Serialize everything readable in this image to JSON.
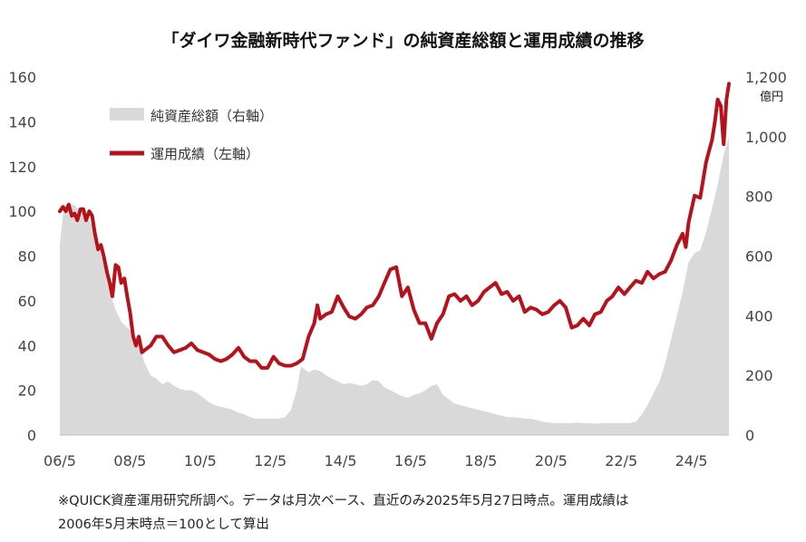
{
  "chart_data": {
    "type": "line",
    "title": "「ダイワ金融新時代ファンド」の純資産総額と運用成績の推移",
    "x_ticks": [
      "06/5",
      "08/5",
      "10/5",
      "12/5",
      "14/5",
      "16/5",
      "18/5",
      "20/5",
      "22/5",
      "24/5"
    ],
    "x_range": [
      2006.33,
      2025.4
    ],
    "y_left": {
      "ticks": [
        "0",
        "20",
        "40",
        "60",
        "80",
        "100",
        "120",
        "140",
        "160"
      ],
      "range": [
        0,
        160
      ]
    },
    "y_right": {
      "ticks": [
        "0",
        "200",
        "400",
        "600",
        "800",
        "1,000",
        "1,200"
      ],
      "range": [
        0,
        1200
      ],
      "unit": "億円"
    },
    "legend": {
      "placement": "top-left"
    },
    "series": [
      {
        "name": "純資産総額（右軸）",
        "type": "area",
        "axis": "right",
        "color": "#d9d9d9",
        "points": [
          [
            2006.33,
            640
          ],
          [
            2006.42,
            740
          ],
          [
            2006.58,
            780
          ],
          [
            2006.75,
            770
          ],
          [
            2006.92,
            750
          ],
          [
            2007.08,
            740
          ],
          [
            2007.25,
            700
          ],
          [
            2007.42,
            640
          ],
          [
            2007.58,
            570
          ],
          [
            2007.75,
            480
          ],
          [
            2007.92,
            420
          ],
          [
            2008.08,
            380
          ],
          [
            2008.25,
            360
          ],
          [
            2008.42,
            340
          ],
          [
            2008.58,
            300
          ],
          [
            2008.75,
            240
          ],
          [
            2008.92,
            200
          ],
          [
            2009.08,
            190
          ],
          [
            2009.25,
            170
          ],
          [
            2009.42,
            180
          ],
          [
            2009.58,
            165
          ],
          [
            2009.75,
            155
          ],
          [
            2009.92,
            150
          ],
          [
            2010.08,
            150
          ],
          [
            2010.25,
            140
          ],
          [
            2010.42,
            125
          ],
          [
            2010.58,
            110
          ],
          [
            2010.75,
            100
          ],
          [
            2010.92,
            95
          ],
          [
            2011.08,
            90
          ],
          [
            2011.25,
            85
          ],
          [
            2011.42,
            75
          ],
          [
            2011.58,
            70
          ],
          [
            2011.75,
            60
          ],
          [
            2011.92,
            55
          ],
          [
            2012.08,
            55
          ],
          [
            2012.25,
            55
          ],
          [
            2012.42,
            55
          ],
          [
            2012.58,
            55
          ],
          [
            2012.75,
            60
          ],
          [
            2012.92,
            85
          ],
          [
            2013.08,
            150
          ],
          [
            2013.2,
            230
          ],
          [
            2013.42,
            210
          ],
          [
            2013.58,
            220
          ],
          [
            2013.75,
            215
          ],
          [
            2013.92,
            200
          ],
          [
            2014.08,
            190
          ],
          [
            2014.25,
            180
          ],
          [
            2014.42,
            170
          ],
          [
            2014.58,
            175
          ],
          [
            2014.75,
            170
          ],
          [
            2014.92,
            165
          ],
          [
            2015.08,
            170
          ],
          [
            2015.25,
            185
          ],
          [
            2015.42,
            180
          ],
          [
            2015.58,
            160
          ],
          [
            2015.75,
            150
          ],
          [
            2015.92,
            140
          ],
          [
            2016.08,
            130
          ],
          [
            2016.25,
            125
          ],
          [
            2016.42,
            135
          ],
          [
            2016.58,
            140
          ],
          [
            2016.75,
            150
          ],
          [
            2016.92,
            165
          ],
          [
            2017.08,
            170
          ],
          [
            2017.25,
            135
          ],
          [
            2017.42,
            120
          ],
          [
            2017.58,
            105
          ],
          [
            2017.75,
            100
          ],
          [
            2017.92,
            95
          ],
          [
            2018.08,
            90
          ],
          [
            2018.25,
            85
          ],
          [
            2018.42,
            80
          ],
          [
            2018.58,
            75
          ],
          [
            2018.75,
            70
          ],
          [
            2018.92,
            65
          ],
          [
            2019.08,
            60
          ],
          [
            2019.25,
            60
          ],
          [
            2019.42,
            58
          ],
          [
            2019.58,
            55
          ],
          [
            2019.75,
            55
          ],
          [
            2019.92,
            50
          ],
          [
            2020.08,
            45
          ],
          [
            2020.25,
            42
          ],
          [
            2020.42,
            40
          ],
          [
            2020.58,
            40
          ],
          [
            2020.75,
            40
          ],
          [
            2020.92,
            40
          ],
          [
            2021.08,
            42
          ],
          [
            2021.25,
            40
          ],
          [
            2021.42,
            40
          ],
          [
            2021.58,
            38
          ],
          [
            2021.75,
            40
          ],
          [
            2021.92,
            40
          ],
          [
            2022.08,
            40
          ],
          [
            2022.25,
            40
          ],
          [
            2022.42,
            40
          ],
          [
            2022.58,
            40
          ],
          [
            2022.75,
            45
          ],
          [
            2022.92,
            70
          ],
          [
            2023.08,
            100
          ],
          [
            2023.25,
            140
          ],
          [
            2023.42,
            180
          ],
          [
            2023.58,
            240
          ],
          [
            2023.75,
            320
          ],
          [
            2023.92,
            400
          ],
          [
            2024.08,
            480
          ],
          [
            2024.25,
            580
          ],
          [
            2024.42,
            610
          ],
          [
            2024.58,
            620
          ],
          [
            2024.75,
            680
          ],
          [
            2024.92,
            760
          ],
          [
            2025.08,
            840
          ],
          [
            2025.25,
            940
          ],
          [
            2025.4,
            1000
          ]
        ]
      },
      {
        "name": "運用成績（左軸）",
        "type": "line",
        "axis": "left",
        "color": "#b5121b",
        "points": [
          [
            2006.33,
            100
          ],
          [
            2006.42,
            102
          ],
          [
            2006.5,
            100
          ],
          [
            2006.58,
            103
          ],
          [
            2006.67,
            98
          ],
          [
            2006.75,
            99
          ],
          [
            2006.83,
            96
          ],
          [
            2006.92,
            101
          ],
          [
            2007.0,
            101
          ],
          [
            2007.08,
            96
          ],
          [
            2007.17,
            100
          ],
          [
            2007.25,
            98
          ],
          [
            2007.33,
            90
          ],
          [
            2007.42,
            83
          ],
          [
            2007.5,
            85
          ],
          [
            2007.58,
            80
          ],
          [
            2007.67,
            73
          ],
          [
            2007.75,
            68
          ],
          [
            2007.83,
            62
          ],
          [
            2007.92,
            76
          ],
          [
            2008.0,
            75
          ],
          [
            2008.08,
            68
          ],
          [
            2008.17,
            70
          ],
          [
            2008.25,
            62
          ],
          [
            2008.33,
            55
          ],
          [
            2008.42,
            44
          ],
          [
            2008.5,
            40
          ],
          [
            2008.58,
            44
          ],
          [
            2008.67,
            37
          ],
          [
            2008.75,
            38
          ],
          [
            2008.92,
            40
          ],
          [
            2009.08,
            44
          ],
          [
            2009.25,
            44
          ],
          [
            2009.42,
            40
          ],
          [
            2009.58,
            37
          ],
          [
            2009.75,
            38
          ],
          [
            2009.92,
            39
          ],
          [
            2010.08,
            41
          ],
          [
            2010.25,
            38
          ],
          [
            2010.42,
            37
          ],
          [
            2010.58,
            36
          ],
          [
            2010.75,
            34
          ],
          [
            2010.92,
            33
          ],
          [
            2011.08,
            34
          ],
          [
            2011.25,
            36
          ],
          [
            2011.42,
            39
          ],
          [
            2011.58,
            35
          ],
          [
            2011.75,
            33
          ],
          [
            2011.92,
            33
          ],
          [
            2012.08,
            30
          ],
          [
            2012.25,
            30
          ],
          [
            2012.42,
            35
          ],
          [
            2012.58,
            32
          ],
          [
            2012.75,
            31
          ],
          [
            2012.92,
            31
          ],
          [
            2013.08,
            32
          ],
          [
            2013.25,
            34
          ],
          [
            2013.42,
            44
          ],
          [
            2013.58,
            50
          ],
          [
            2013.67,
            58
          ],
          [
            2013.75,
            52
          ],
          [
            2013.92,
            54
          ],
          [
            2014.08,
            55
          ],
          [
            2014.25,
            62
          ],
          [
            2014.42,
            57
          ],
          [
            2014.58,
            53
          ],
          [
            2014.75,
            52
          ],
          [
            2014.92,
            54
          ],
          [
            2015.08,
            57
          ],
          [
            2015.25,
            58
          ],
          [
            2015.42,
            62
          ],
          [
            2015.58,
            68
          ],
          [
            2015.75,
            74
          ],
          [
            2015.92,
            75
          ],
          [
            2016.08,
            62
          ],
          [
            2016.25,
            66
          ],
          [
            2016.42,
            56
          ],
          [
            2016.58,
            50
          ],
          [
            2016.75,
            50
          ],
          [
            2016.92,
            43
          ],
          [
            2017.08,
            50
          ],
          [
            2017.25,
            54
          ],
          [
            2017.42,
            62
          ],
          [
            2017.58,
            63
          ],
          [
            2017.75,
            60
          ],
          [
            2017.92,
            62
          ],
          [
            2018.08,
            58
          ],
          [
            2018.25,
            60
          ],
          [
            2018.42,
            64
          ],
          [
            2018.58,
            66
          ],
          [
            2018.75,
            68
          ],
          [
            2018.92,
            63
          ],
          [
            2019.08,
            64
          ],
          [
            2019.25,
            60
          ],
          [
            2019.42,
            62
          ],
          [
            2019.58,
            55
          ],
          [
            2019.75,
            57
          ],
          [
            2019.92,
            56
          ],
          [
            2020.08,
            54
          ],
          [
            2020.25,
            55
          ],
          [
            2020.42,
            58
          ],
          [
            2020.58,
            60
          ],
          [
            2020.75,
            57
          ],
          [
            2020.92,
            48
          ],
          [
            2021.08,
            49
          ],
          [
            2021.25,
            52
          ],
          [
            2021.42,
            49
          ],
          [
            2021.58,
            54
          ],
          [
            2021.75,
            55
          ],
          [
            2021.92,
            60
          ],
          [
            2022.08,
            62
          ],
          [
            2022.25,
            66
          ],
          [
            2022.42,
            63
          ],
          [
            2022.58,
            66
          ],
          [
            2022.75,
            69
          ],
          [
            2022.92,
            68
          ],
          [
            2023.08,
            73
          ],
          [
            2023.25,
            70
          ],
          [
            2023.42,
            72
          ],
          [
            2023.58,
            73
          ],
          [
            2023.75,
            78
          ],
          [
            2023.92,
            85
          ],
          [
            2024.08,
            90
          ],
          [
            2024.17,
            84
          ],
          [
            2024.25,
            95
          ],
          [
            2024.42,
            107
          ],
          [
            2024.58,
            106
          ],
          [
            2024.75,
            122
          ],
          [
            2024.92,
            132
          ],
          [
            2025.0,
            140
          ],
          [
            2025.08,
            150
          ],
          [
            2025.17,
            147
          ],
          [
            2025.25,
            130
          ],
          [
            2025.33,
            150
          ],
          [
            2025.4,
            157
          ]
        ]
      }
    ]
  },
  "note": {
    "line1": "※QUICK資産運用研究所調べ。データは月次ベース、直近のみ2025年5月27日時点。運用成績は",
    "line2": "2006年5月末時点＝100として算出"
  }
}
